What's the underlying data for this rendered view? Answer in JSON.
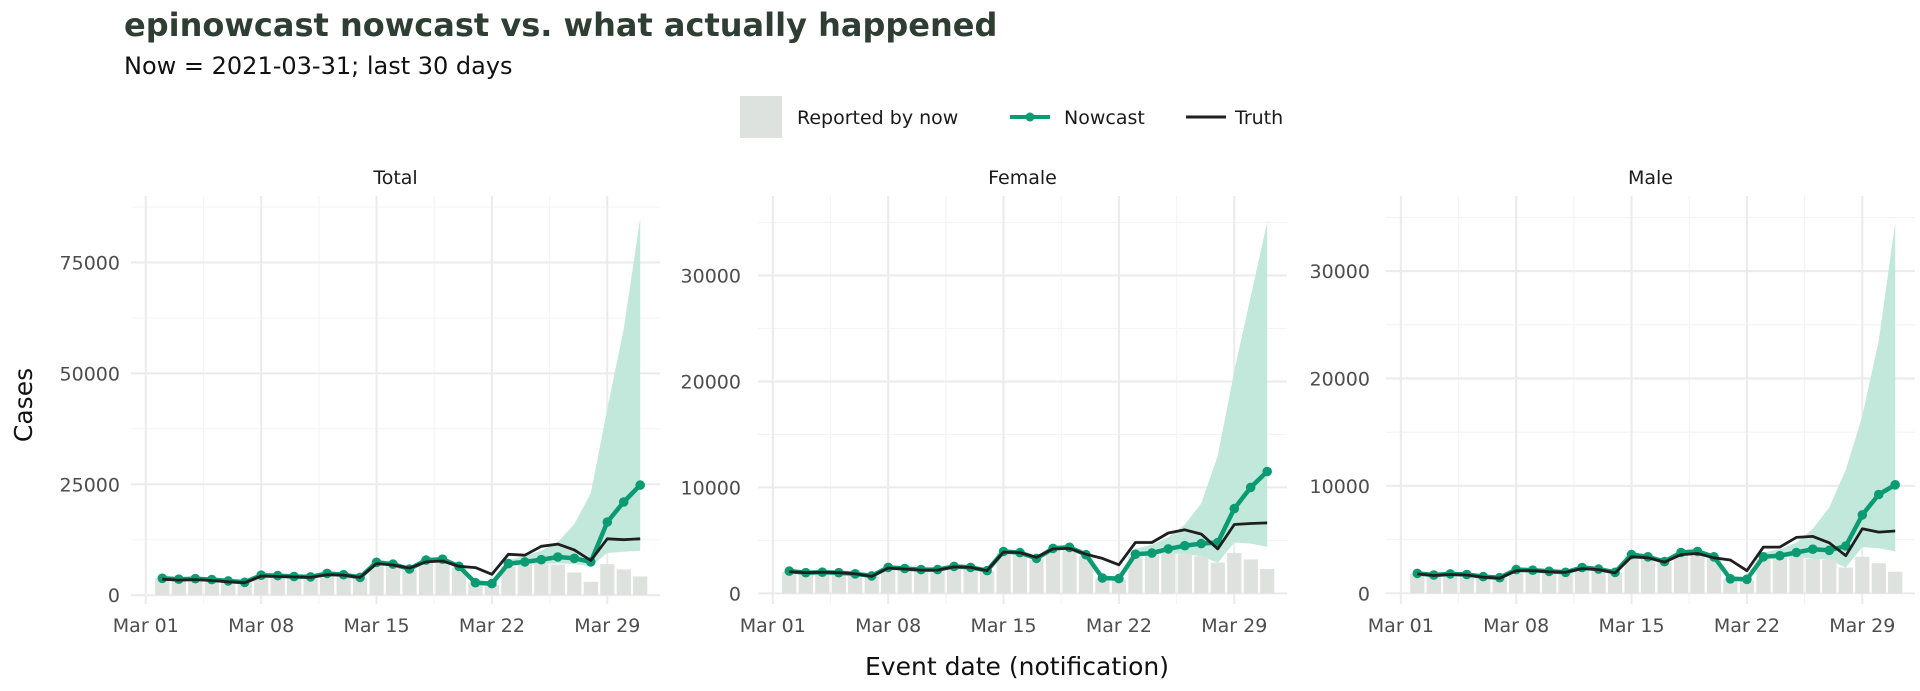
{
  "title": "epinowcast nowcast vs. what actually happened",
  "subtitle": "Now = 2021-03-31; last 30 days",
  "colors": {
    "reported": "#dde2de",
    "nowcast": "#0a9b72",
    "ribbon": "#bfe7d9",
    "truth": "#1f1f1f",
    "grid": "#ebebeb"
  },
  "legend": {
    "placement": "top",
    "items": [
      {
        "label": "Reported by now",
        "kind": "box"
      },
      {
        "label": "Nowcast",
        "kind": "line-point"
      },
      {
        "label": "Truth",
        "kind": "line"
      }
    ]
  },
  "axes": {
    "xlabel": "Event date (notification)",
    "ylabel": "Cases"
  },
  "chart_data": [
    {
      "type": "bar",
      "title": "Total",
      "x_ticks": [
        {
          "label": "Mar 01",
          "day": 1
        },
        {
          "label": "Mar 08",
          "day": 8
        },
        {
          "label": "Mar 15",
          "day": 15
        },
        {
          "label": "Mar 22",
          "day": 22
        },
        {
          "label": "Mar 29",
          "day": 29
        }
      ],
      "xlim_days": [
        0.1,
        32.2
      ],
      "ylim": [
        -2000,
        90000
      ],
      "y_ticks": [
        0,
        25000,
        50000,
        75000
      ],
      "grid": true,
      "days": [
        2,
        3,
        4,
        5,
        6,
        7,
        8,
        9,
        10,
        11,
        12,
        13,
        14,
        15,
        16,
        17,
        18,
        19,
        20,
        21,
        22,
        23,
        24,
        25,
        26,
        27,
        28,
        29,
        30,
        31
      ],
      "reported": [
        3800,
        3600,
        3700,
        3400,
        3100,
        2800,
        4400,
        4300,
        4100,
        4000,
        4700,
        4500,
        3900,
        7200,
        6800,
        5600,
        7600,
        7800,
        6200,
        2700,
        2300,
        6500,
        6800,
        7000,
        6900,
        5100,
        3000,
        7000,
        5800,
        4200
      ],
      "nowcast": [
        3800,
        3600,
        3700,
        3500,
        3200,
        2900,
        4500,
        4400,
        4200,
        4100,
        4900,
        4600,
        4000,
        7400,
        7000,
        5900,
        7900,
        8100,
        6500,
        2800,
        2600,
        7100,
        7500,
        8000,
        8600,
        8300,
        7500,
        16500,
        21000,
        24800
      ],
      "nowcast_lower": [
        3800,
        3600,
        3700,
        3400,
        3100,
        2800,
        4400,
        4300,
        4100,
        4000,
        4700,
        4500,
        3900,
        7200,
        6800,
        5600,
        7600,
        7800,
        6200,
        2700,
        2300,
        6500,
        6800,
        7000,
        7200,
        7000,
        6500,
        9500,
        9800,
        10000
      ],
      "nowcast_upper": [
        3800,
        3600,
        3700,
        3600,
        3300,
        3000,
        4600,
        4500,
        4300,
        4200,
        5000,
        4800,
        4200,
        7700,
        7300,
        6200,
        8300,
        8600,
        7100,
        3300,
        3100,
        8000,
        8800,
        10000,
        12000,
        16000,
        23000,
        42000,
        60000,
        85000
      ],
      "truth": [
        3600,
        3400,
        3500,
        3300,
        3000,
        2800,
        4300,
        4200,
        4100,
        4000,
        4600,
        4500,
        4000,
        7100,
        6800,
        6100,
        7500,
        7700,
        6500,
        6200,
        4700,
        9200,
        9000,
        11000,
        11500,
        10200,
        7800,
        12700,
        12500,
        12700
      ]
    },
    {
      "type": "bar",
      "title": "Female",
      "x_ticks": [
        {
          "label": "Mar 01",
          "day": 1
        },
        {
          "label": "Mar 08",
          "day": 8
        },
        {
          "label": "Mar 15",
          "day": 15
        },
        {
          "label": "Mar 22",
          "day": 22
        },
        {
          "label": "Mar 29",
          "day": 29
        }
      ],
      "xlim_days": [
        0.1,
        32.2
      ],
      "ylim": [
        -1000,
        37500
      ],
      "y_ticks": [
        0,
        10000,
        20000,
        30000
      ],
      "grid": true,
      "days": [
        2,
        3,
        4,
        5,
        6,
        7,
        8,
        9,
        10,
        11,
        12,
        13,
        14,
        15,
        16,
        17,
        18,
        19,
        20,
        21,
        22,
        23,
        24,
        25,
        26,
        27,
        28,
        29,
        30,
        31
      ],
      "reported": [
        2000,
        1900,
        1950,
        1900,
        1800,
        1600,
        2400,
        2300,
        2200,
        2200,
        2500,
        2400,
        2100,
        3800,
        3700,
        3200,
        4100,
        4200,
        3500,
        1400,
        1300,
        3500,
        3600,
        3800,
        3700,
        3500,
        2900,
        3800,
        3200,
        2300
      ],
      "nowcast": [
        2100,
        1950,
        2000,
        1950,
        1850,
        1650,
        2450,
        2350,
        2250,
        2250,
        2550,
        2450,
        2150,
        3950,
        3850,
        3300,
        4250,
        4350,
        3650,
        1450,
        1400,
        3700,
        3800,
        4200,
        4500,
        4700,
        4800,
        8000,
        10000,
        11500
      ],
      "nowcast_lower": [
        2000,
        1900,
        1950,
        1900,
        1800,
        1600,
        2400,
        2300,
        2200,
        2200,
        2500,
        2400,
        2100,
        3800,
        3700,
        3200,
        4100,
        4200,
        3500,
        1400,
        1300,
        3500,
        3600,
        3800,
        3700,
        3500,
        2900,
        4800,
        4700,
        4400
      ],
      "nowcast_upper": [
        2150,
        2000,
        2050,
        2000,
        1900,
        1700,
        2550,
        2450,
        2350,
        2350,
        2650,
        2550,
        2250,
        4150,
        4050,
        3500,
        4500,
        4600,
        3900,
        1700,
        1600,
        4200,
        4600,
        5300,
        6500,
        8500,
        13000,
        21000,
        28000,
        35000
      ],
      "truth": [
        2050,
        1950,
        2000,
        1950,
        1850,
        1600,
        2400,
        2300,
        2200,
        2200,
        2500,
        2450,
        2150,
        3900,
        3850,
        3400,
        4200,
        4250,
        3700,
        3300,
        2700,
        4800,
        4800,
        5700,
        6000,
        5600,
        4200,
        6500,
        6600,
        6650
      ]
    },
    {
      "type": "bar",
      "title": "Male",
      "x_ticks": [
        {
          "label": "Mar 01",
          "day": 1
        },
        {
          "label": "Mar 08",
          "day": 8
        },
        {
          "label": "Mar 15",
          "day": 15
        },
        {
          "label": "Mar 22",
          "day": 22
        },
        {
          "label": "Mar 29",
          "day": 29
        }
      ],
      "xlim_days": [
        0.1,
        32.2
      ],
      "ylim": [
        -1000,
        37000
      ],
      "y_ticks": [
        0,
        10000,
        20000,
        30000
      ],
      "grid": true,
      "days": [
        2,
        3,
        4,
        5,
        6,
        7,
        8,
        9,
        10,
        11,
        12,
        13,
        14,
        15,
        16,
        17,
        18,
        19,
        20,
        21,
        22,
        23,
        24,
        25,
        26,
        27,
        28,
        29,
        30,
        31
      ],
      "reported": [
        1800,
        1700,
        1750,
        1700,
        1500,
        1400,
        2100,
        2100,
        2000,
        1900,
        2300,
        2200,
        1900,
        3500,
        3300,
        2900,
        3700,
        3800,
        3300,
        1300,
        1200,
        3200,
        3300,
        3400,
        3200,
        3100,
        2400,
        3400,
        2800,
        2000
      ],
      "nowcast": [
        1850,
        1700,
        1800,
        1750,
        1550,
        1450,
        2200,
        2150,
        2050,
        1950,
        2400,
        2250,
        1950,
        3600,
        3400,
        2950,
        3800,
        3900,
        3400,
        1350,
        1300,
        3400,
        3500,
        3800,
        4100,
        4000,
        4400,
        7300,
        9200,
        10100
      ],
      "nowcast_lower": [
        1800,
        1700,
        1750,
        1700,
        1500,
        1400,
        2100,
        2100,
        2000,
        1900,
        2300,
        2200,
        1900,
        3500,
        3300,
        2900,
        3700,
        3800,
        3300,
        1300,
        1200,
        3200,
        3300,
        3400,
        3200,
        3100,
        2400,
        4300,
        4200,
        3900
      ],
      "nowcast_upper": [
        1900,
        1750,
        1850,
        1800,
        1600,
        1500,
        2300,
        2250,
        2150,
        2050,
        2500,
        2350,
        2050,
        3800,
        3600,
        3100,
        4000,
        4100,
        3600,
        1600,
        1500,
        3800,
        4100,
        4700,
        6000,
        8000,
        11500,
        16500,
        23500,
        34500
      ],
      "truth": [
        1800,
        1650,
        1750,
        1700,
        1500,
        1400,
        2100,
        2100,
        2000,
        1950,
        2300,
        2200,
        1900,
        3400,
        3300,
        2900,
        3600,
        3700,
        3300,
        3100,
        2100,
        4300,
        4300,
        5200,
        5300,
        4700,
        3500,
        6000,
        5700,
        5800
      ]
    }
  ]
}
